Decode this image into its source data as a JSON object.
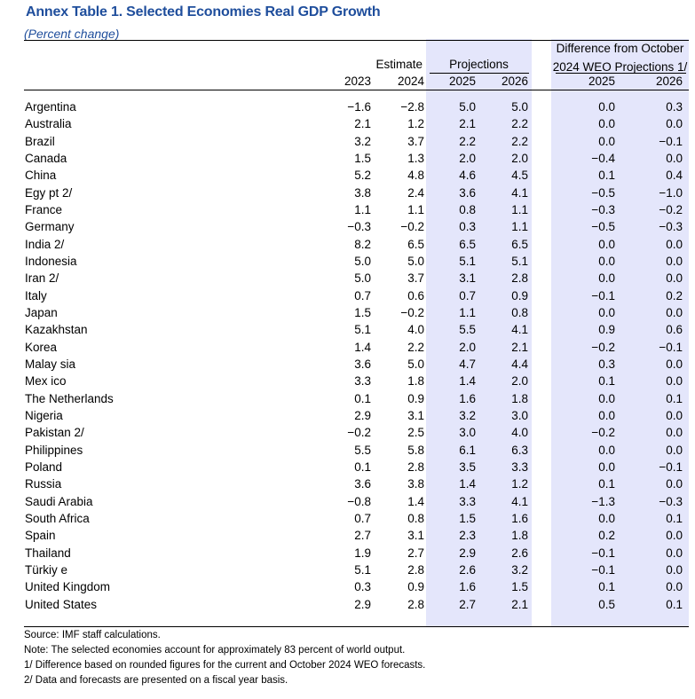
{
  "title": "Annex Table 1. Selected Economies Real GDP Growth",
  "subtitle": "(Percent change)",
  "headers": {
    "estimate": "Estimate",
    "projections": "Projections",
    "difference_line1": "Difference from October",
    "difference_line2": "2024 WEO Projections 1/",
    "y2023": "2023",
    "y2024": "2024",
    "y2025": "2025",
    "y2026": "2026",
    "d2025": "2025",
    "d2026": "2026"
  },
  "rows": [
    {
      "name": "Argentina",
      "v": [
        "−1.6",
        "−2.8",
        "5.0",
        "5.0",
        "0.0",
        "0.3"
      ]
    },
    {
      "name": "Australia",
      "v": [
        "2.1",
        "1.2",
        "2.1",
        "2.2",
        "0.0",
        "0.0"
      ]
    },
    {
      "name": "Brazil",
      "v": [
        "3.2",
        "3.7",
        "2.2",
        "2.2",
        "0.0",
        "−0.1"
      ]
    },
    {
      "name": "Canada",
      "v": [
        "1.5",
        "1.3",
        "2.0",
        "2.0",
        "−0.4",
        "0.0"
      ]
    },
    {
      "name": "China",
      "v": [
        "5.2",
        "4.8",
        "4.6",
        "4.5",
        "0.1",
        "0.4"
      ]
    },
    {
      "name": "Egy pt 2/",
      "v": [
        "3.8",
        "2.4",
        "3.6",
        "4.1",
        "−0.5",
        "−1.0"
      ]
    },
    {
      "name": "France",
      "v": [
        "1.1",
        "1.1",
        "0.8",
        "1.1",
        "−0.3",
        "−0.2"
      ]
    },
    {
      "name": "Germany",
      "v": [
        "−0.3",
        "−0.2",
        "0.3",
        "1.1",
        "−0.5",
        "−0.3"
      ]
    },
    {
      "name": "India 2/",
      "v": [
        "8.2",
        "6.5",
        "6.5",
        "6.5",
        "0.0",
        "0.0"
      ]
    },
    {
      "name": "Indonesia",
      "v": [
        "5.0",
        "5.0",
        "5.1",
        "5.1",
        "0.0",
        "0.0"
      ]
    },
    {
      "name": "Iran 2/",
      "v": [
        "5.0",
        "3.7",
        "3.1",
        "2.8",
        "0.0",
        "0.0"
      ]
    },
    {
      "name": "Italy",
      "v": [
        "0.7",
        "0.6",
        "0.7",
        "0.9",
        "−0.1",
        "0.2"
      ]
    },
    {
      "name": "Japan",
      "v": [
        "1.5",
        "−0.2",
        "1.1",
        "0.8",
        "0.0",
        "0.0"
      ]
    },
    {
      "name": "Kazakhstan",
      "v": [
        "5.1",
        "4.0",
        "5.5",
        "4.1",
        "0.9",
        "0.6"
      ]
    },
    {
      "name": "Korea",
      "v": [
        "1.4",
        "2.2",
        "2.0",
        "2.1",
        "−0.2",
        "−0.1"
      ]
    },
    {
      "name": "Malay sia",
      "v": [
        "3.6",
        "5.0",
        "4.7",
        "4.4",
        "0.3",
        "0.0"
      ]
    },
    {
      "name": "Mex ico",
      "v": [
        "3.3",
        "1.8",
        "1.4",
        "2.0",
        "0.1",
        "0.0"
      ]
    },
    {
      "name": "The Netherlands",
      "v": [
        "0.1",
        "0.9",
        "1.6",
        "1.8",
        "0.0",
        "0.1"
      ]
    },
    {
      "name": "Nigeria",
      "v": [
        "2.9",
        "3.1",
        "3.2",
        "3.0",
        "0.0",
        "0.0"
      ]
    },
    {
      "name": "Pakistan 2/",
      "v": [
        "−0.2",
        "2.5",
        "3.0",
        "4.0",
        "−0.2",
        "0.0"
      ]
    },
    {
      "name": "Philippines",
      "v": [
        "5.5",
        "5.8",
        "6.1",
        "6.3",
        "0.0",
        "0.0"
      ]
    },
    {
      "name": "Poland",
      "v": [
        "0.1",
        "2.8",
        "3.5",
        "3.3",
        "0.0",
        "−0.1"
      ]
    },
    {
      "name": "Russia",
      "v": [
        "3.6",
        "3.8",
        "1.4",
        "1.2",
        "0.1",
        "0.0"
      ]
    },
    {
      "name": "Saudi Arabia",
      "v": [
        "−0.8",
        "1.4",
        "3.3",
        "4.1",
        "−1.3",
        "−0.3"
      ]
    },
    {
      "name": "South Africa",
      "v": [
        "0.7",
        "0.8",
        "1.5",
        "1.6",
        "0.0",
        "0.1"
      ]
    },
    {
      "name": "Spain",
      "v": [
        "2.7",
        "3.1",
        "2.3",
        "1.8",
        "0.2",
        "0.0"
      ]
    },
    {
      "name": "Thailand",
      "v": [
        "1.9",
        "2.7",
        "2.9",
        "2.6",
        "−0.1",
        "0.0"
      ]
    },
    {
      "name": "Türkiy e",
      "v": [
        "5.1",
        "2.8",
        "2.6",
        "3.2",
        "−0.1",
        "0.0"
      ]
    },
    {
      "name": "United Kingdom",
      "v": [
        "0.3",
        "0.9",
        "1.6",
        "1.5",
        "0.1",
        "0.0"
      ]
    },
    {
      "name": "United States",
      "v": [
        "2.9",
        "2.8",
        "2.7",
        "2.1",
        "0.5",
        "0.1"
      ]
    }
  ],
  "notes": [
    "Source: IMF staff calculations.",
    "Note: The selected economies account for approximately 83 percent of world output.",
    "1/ Difference based on rounded figures for the current and October 2024 WEO forecasts.",
    "2/ Data and forecasts are presented on a fiscal year basis."
  ]
}
